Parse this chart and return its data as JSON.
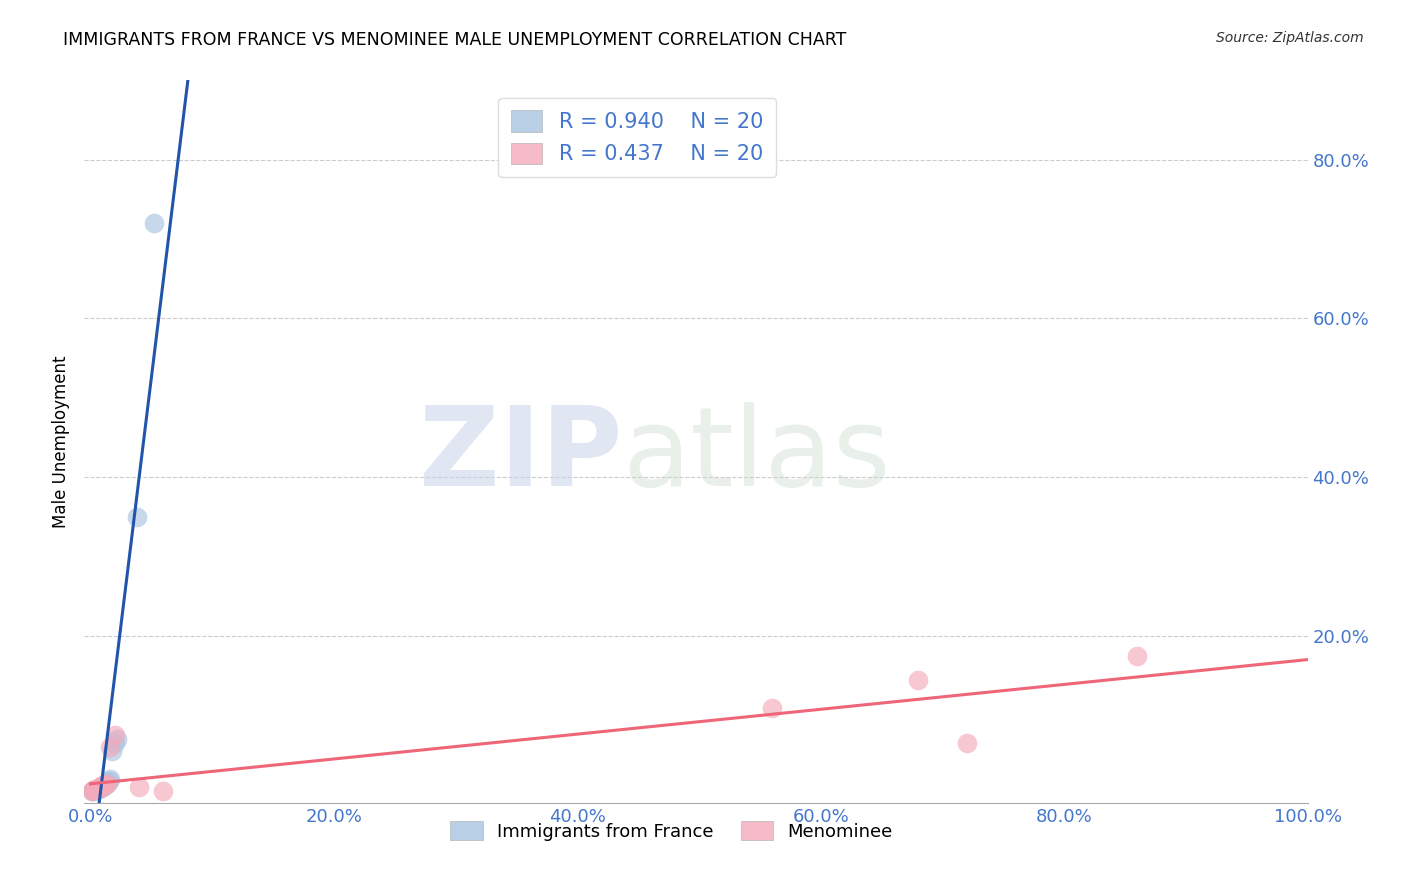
{
  "title": "IMMIGRANTS FROM FRANCE VS MENOMINEE MALE UNEMPLOYMENT CORRELATION CHART",
  "source": "Source: ZipAtlas.com",
  "ylabel": "Male Unemployment",
  "x_tick_labels": [
    "0.0%",
    "20.0%",
    "40.0%",
    "60.0%",
    "80.0%",
    "100.0%"
  ],
  "x_tick_values": [
    0,
    0.2,
    0.4,
    0.6,
    0.8,
    1.0
  ],
  "y_tick_labels": [
    "20.0%",
    "40.0%",
    "60.0%",
    "80.0%"
  ],
  "y_tick_values": [
    0.2,
    0.4,
    0.6,
    0.8
  ],
  "xlim": [
    -0.005,
    1.0
  ],
  "ylim": [
    -0.01,
    0.9
  ],
  "blue_R": 0.94,
  "pink_R": 0.437,
  "N": 20,
  "blue_color": "#A8C4E0",
  "pink_color": "#F4AABB",
  "blue_line_color": "#2255AA",
  "pink_line_color": "#EE6677",
  "legend_label_blue": "Immigrants from France",
  "legend_label_pink": "Menominee",
  "blue_x": [
    0.001,
    0.002,
    0.003,
    0.004,
    0.005,
    0.006,
    0.007,
    0.008,
    0.009,
    0.01,
    0.011,
    0.012,
    0.013,
    0.015,
    0.016,
    0.018,
    0.02,
    0.022,
    0.038,
    0.052
  ],
  "blue_y": [
    0.005,
    0.005,
    0.006,
    0.006,
    0.007,
    0.007,
    0.008,
    0.009,
    0.01,
    0.01,
    0.012,
    0.013,
    0.015,
    0.017,
    0.02,
    0.055,
    0.065,
    0.07,
    0.35,
    0.72
  ],
  "pink_x": [
    0.001,
    0.002,
    0.003,
    0.004,
    0.005,
    0.006,
    0.007,
    0.008,
    0.009,
    0.01,
    0.012,
    0.014,
    0.016,
    0.02,
    0.04,
    0.06,
    0.56,
    0.68,
    0.72,
    0.86
  ],
  "pink_y": [
    0.005,
    0.006,
    0.006,
    0.007,
    0.007,
    0.008,
    0.009,
    0.01,
    0.011,
    0.012,
    0.013,
    0.014,
    0.06,
    0.075,
    0.01,
    0.005,
    0.11,
    0.145,
    0.065,
    0.175
  ]
}
